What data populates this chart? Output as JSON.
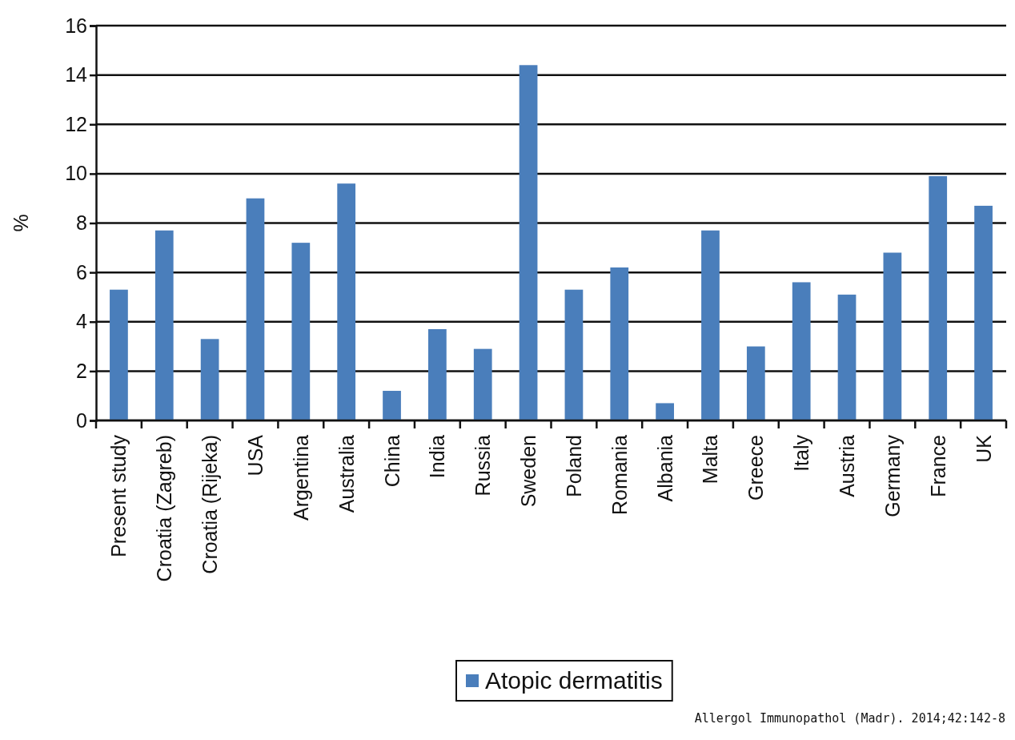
{
  "chart_data": {
    "type": "bar",
    "ylabel": "%",
    "categories": [
      "Present study",
      "Croatia (Zagreb)",
      "Croatia (Rijeka)",
      "USA",
      "Argentina",
      "Australia",
      "China",
      "India",
      "Russia",
      "Sweden",
      "Poland",
      "Romania",
      "Albania",
      "Malta",
      "Greece",
      "Italy",
      "Austria",
      "Germany",
      "France",
      "UK"
    ],
    "series": [
      {
        "name": "Atopic dermatitis",
        "color": "#4a7ebb",
        "values": [
          5.3,
          7.7,
          3.3,
          9.0,
          7.2,
          9.6,
          1.2,
          3.7,
          2.9,
          14.4,
          5.3,
          6.2,
          0.7,
          7.7,
          3.0,
          5.6,
          5.1,
          6.8,
          9.9,
          8.7
        ]
      }
    ],
    "ylim": [
      0,
      16
    ],
    "yticks": [
      0,
      2,
      4,
      6,
      8,
      10,
      12,
      14,
      16
    ],
    "grid": "y",
    "legend": "bottom",
    "annotations": [
      "Allergol  Immunopathol (Madr). 2014;42:142-8"
    ]
  }
}
